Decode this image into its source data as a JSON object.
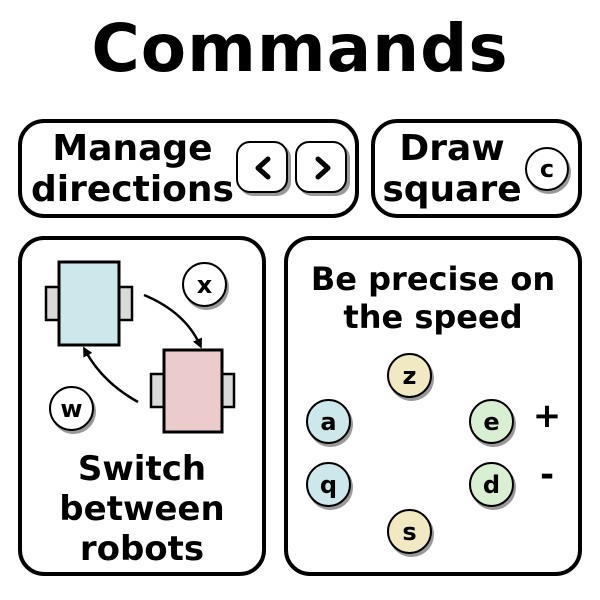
{
  "title": "Commands",
  "colors": {
    "robot_blue": "#cde8ea",
    "robot_pink": "#ebcbcb",
    "key_yellow": "#f1e9c2",
    "key_blue": "#cde8ea",
    "key_green": "#d9efd2",
    "key_white": "#ffffff"
  },
  "manage": {
    "label_line1": "Manage",
    "label_line2": "directions",
    "left_key": "chevron-left-icon",
    "right_key": "chevron-right-icon"
  },
  "draw": {
    "label_line1": "Draw",
    "label_line2": "square",
    "key": "c"
  },
  "switch": {
    "label_line1": "Switch",
    "label_line2": "between",
    "label_line3": "robots",
    "key_next": "x",
    "key_prev": "w"
  },
  "speed": {
    "label_line1": "Be precise on",
    "label_line2": "the speed",
    "key_up": "z",
    "key_down": "s",
    "key_left_up": "a",
    "key_left_down": "q",
    "key_right_up": "e",
    "key_right_down": "d",
    "plus": "+",
    "minus": "-"
  }
}
